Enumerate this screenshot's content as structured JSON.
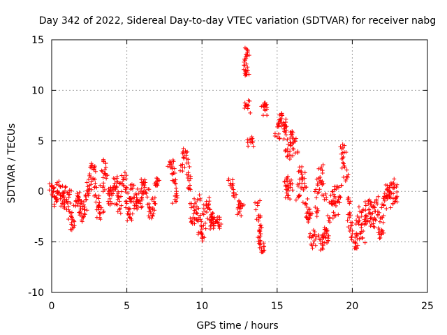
{
  "chart_data": {
    "type": "scatter",
    "title": "Day 342 of 2022, Sidereal Day-to-day VTEC variation (SDTVAR) for receiver nabg",
    "xlabel": "GPS time / hours",
    "ylabel": "SDTVAR / TECUs",
    "xlim": [
      0,
      25
    ],
    "ylim": [
      -10,
      15
    ],
    "x_ticks": [
      "0",
      "5",
      "10",
      "15",
      "20",
      "25"
    ],
    "y_ticks": [
      "-10",
      "-5",
      "0",
      "5",
      "10",
      "15"
    ],
    "grid": true,
    "marker": "+",
    "series": [
      {
        "name": "SDTVAR",
        "color": "#ff0000",
        "points": [
          [
            0.0,
            0.5
          ],
          [
            0.1,
            0.0
          ],
          [
            0.2,
            -0.5
          ],
          [
            0.3,
            -1.0
          ],
          [
            0.4,
            -0.2
          ],
          [
            0.5,
            0.6
          ],
          [
            0.6,
            -0.4
          ],
          [
            0.7,
            -1.2
          ],
          [
            0.8,
            -0.6
          ],
          [
            0.9,
            0.4
          ],
          [
            1.0,
            -0.8
          ],
          [
            1.1,
            -1.5
          ],
          [
            1.2,
            -0.3
          ],
          [
            1.3,
            -2.5
          ],
          [
            1.4,
            -3.4
          ],
          [
            1.5,
            -3.0
          ],
          [
            1.6,
            -1.0
          ],
          [
            1.7,
            -0.2
          ],
          [
            1.8,
            -0.9
          ],
          [
            1.9,
            -1.5
          ],
          [
            2.0,
            -2.2
          ],
          [
            2.1,
            -2.6
          ],
          [
            2.2,
            -1.8
          ],
          [
            2.3,
            -0.8
          ],
          [
            2.4,
            -0.2
          ],
          [
            2.5,
            0.6
          ],
          [
            2.6,
            1.4
          ],
          [
            2.7,
            2.6
          ],
          [
            2.8,
            2.2
          ],
          [
            2.9,
            0.8
          ],
          [
            3.0,
            -0.6
          ],
          [
            3.1,
            -1.8
          ],
          [
            3.2,
            -2.6
          ],
          [
            3.3,
            -1.6
          ],
          [
            3.4,
            0.4
          ],
          [
            3.5,
            1.8
          ],
          [
            3.6,
            2.8
          ],
          [
            3.7,
            1.6
          ],
          [
            3.8,
            0.0
          ],
          [
            3.9,
            -1.0
          ],
          [
            4.0,
            -0.4
          ],
          [
            4.1,
            0.4
          ],
          [
            4.2,
            1.2
          ],
          [
            4.3,
            0.5
          ],
          [
            4.4,
            -0.8
          ],
          [
            4.5,
            -1.8
          ],
          [
            4.6,
            -0.5
          ],
          [
            4.7,
            0.8
          ],
          [
            4.8,
            1.4
          ],
          [
            4.9,
            0.2
          ],
          [
            5.0,
            -1.2
          ],
          [
            5.1,
            -2.0
          ],
          [
            5.2,
            -2.6
          ],
          [
            5.3,
            -1.0
          ],
          [
            5.4,
            0.3
          ],
          [
            5.5,
            -0.6
          ],
          [
            5.6,
            -1.4
          ],
          [
            5.7,
            -0.8
          ],
          [
            5.8,
            -0.2
          ],
          [
            5.9,
            -1.2
          ],
          [
            6.0,
            -0.6
          ],
          [
            6.1,
            1.0
          ],
          [
            6.2,
            0.4
          ],
          [
            6.3,
            -0.2
          ],
          [
            6.5,
            -1.6
          ],
          [
            6.6,
            -2.2
          ],
          [
            6.7,
            -1.8
          ],
          [
            6.8,
            -1.0
          ],
          [
            6.9,
            0.6
          ],
          [
            7.0,
            1.0
          ],
          [
            7.9,
            2.8
          ],
          [
            8.0,
            2.5
          ],
          [
            8.1,
            1.8
          ],
          [
            8.2,
            0.8
          ],
          [
            8.3,
            0.0
          ],
          [
            8.2,
            -0.8
          ],
          [
            8.7,
            2.4
          ],
          [
            8.8,
            3.4
          ],
          [
            8.9,
            4.0
          ],
          [
            9.0,
            2.8
          ],
          [
            9.1,
            1.6
          ],
          [
            9.2,
            0.6
          ],
          [
            9.3,
            -1.2
          ],
          [
            9.4,
            -2.6
          ],
          [
            9.5,
            -3.2
          ],
          [
            9.6,
            -1.8
          ],
          [
            9.7,
            -0.8
          ],
          [
            9.8,
            -2.6
          ],
          [
            9.9,
            -4.0
          ],
          [
            10.0,
            -4.6
          ],
          [
            10.1,
            -3.4
          ],
          [
            10.2,
            -2.0
          ],
          [
            10.3,
            -1.0
          ],
          [
            10.4,
            -1.6
          ],
          [
            10.5,
            -2.8
          ],
          [
            10.6,
            -3.4
          ],
          [
            10.7,
            -2.6
          ],
          [
            10.8,
            -3.2
          ],
          [
            10.9,
            -3.0
          ],
          [
            11.0,
            -2.8
          ],
          [
            11.1,
            -3.4
          ],
          [
            11.9,
            0.8
          ],
          [
            12.0,
            0.3
          ],
          [
            12.1,
            -0.2
          ],
          [
            12.4,
            -1.6
          ],
          [
            12.5,
            -2.0
          ],
          [
            12.6,
            -1.2
          ],
          [
            12.9,
            12.0
          ],
          [
            12.95,
            12.6
          ],
          [
            13.0,
            13.4
          ],
          [
            13.05,
            13.9
          ],
          [
            12.95,
            11.6
          ],
          [
            13.0,
            8.6
          ],
          [
            13.05,
            8.2
          ],
          [
            13.2,
            5.1
          ],
          [
            13.25,
            4.8
          ],
          [
            13.7,
            -1.4
          ],
          [
            13.8,
            -2.6
          ],
          [
            13.85,
            -3.4
          ],
          [
            13.9,
            -5.0
          ],
          [
            13.95,
            -5.6
          ],
          [
            14.0,
            -6.0
          ],
          [
            13.9,
            -4.2
          ],
          [
            14.1,
            8.4
          ],
          [
            14.2,
            8.0
          ],
          [
            14.3,
            8.6
          ],
          [
            15.0,
            5.4
          ],
          [
            15.1,
            6.4
          ],
          [
            15.2,
            7.0
          ],
          [
            15.3,
            7.5
          ],
          [
            15.4,
            6.8
          ],
          [
            15.5,
            6.2
          ],
          [
            15.6,
            5.6
          ],
          [
            15.7,
            4.2
          ],
          [
            15.8,
            3.6
          ],
          [
            15.9,
            4.8
          ],
          [
            16.0,
            5.6
          ],
          [
            16.1,
            4.8
          ],
          [
            16.2,
            3.8
          ],
          [
            15.5,
            1.0
          ],
          [
            15.6,
            0.2
          ],
          [
            15.7,
            -0.4
          ],
          [
            15.8,
            1.0
          ],
          [
            15.9,
            0.4
          ],
          [
            16.4,
            -0.6
          ],
          [
            16.5,
            0.8
          ],
          [
            16.6,
            2.0
          ],
          [
            16.7,
            1.4
          ],
          [
            16.8,
            0.4
          ],
          [
            16.9,
            -1.2
          ],
          [
            17.0,
            -2.6
          ],
          [
            17.1,
            -1.8
          ],
          [
            17.2,
            -2.4
          ],
          [
            17.3,
            -4.6
          ],
          [
            17.4,
            -5.2
          ],
          [
            17.5,
            -4.0
          ],
          [
            17.6,
            -2.0
          ],
          [
            17.7,
            -0.2
          ],
          [
            17.8,
            1.0
          ],
          [
            17.9,
            2.2
          ],
          [
            18.0,
            1.0
          ],
          [
            18.1,
            -0.4
          ],
          [
            17.9,
            -4.8
          ],
          [
            18.0,
            -5.6
          ],
          [
            18.1,
            -4.6
          ],
          [
            18.2,
            -3.8
          ],
          [
            18.3,
            -4.2
          ],
          [
            18.4,
            -4.9
          ],
          [
            18.5,
            -2.6
          ],
          [
            18.6,
            -1.0
          ],
          [
            18.7,
            0.0
          ],
          [
            18.8,
            -1.2
          ],
          [
            18.9,
            -2.4
          ],
          [
            19.0,
            -1.0
          ],
          [
            19.1,
            0.4
          ],
          [
            19.2,
            -0.6
          ],
          [
            19.3,
            4.2
          ],
          [
            19.4,
            3.4
          ],
          [
            19.5,
            2.4
          ],
          [
            19.6,
            1.2
          ],
          [
            19.7,
            -0.8
          ],
          [
            19.8,
            -2.6
          ],
          [
            19.9,
            -3.4
          ],
          [
            20.0,
            -4.2
          ],
          [
            20.1,
            -5.0
          ],
          [
            20.2,
            -5.6
          ],
          [
            20.3,
            -4.4
          ],
          [
            20.4,
            -3.0
          ],
          [
            20.5,
            -2.0
          ],
          [
            20.6,
            -3.6
          ],
          [
            20.7,
            -4.6
          ],
          [
            20.8,
            -2.8
          ],
          [
            20.9,
            -1.4
          ],
          [
            21.0,
            -3.0
          ],
          [
            21.1,
            -2.2
          ],
          [
            21.2,
            -1.0
          ],
          [
            21.3,
            -2.6
          ],
          [
            21.4,
            -3.2
          ],
          [
            21.5,
            -1.6
          ],
          [
            21.6,
            -0.8
          ],
          [
            21.7,
            -2.4
          ],
          [
            21.8,
            -3.8
          ],
          [
            21.9,
            -4.2
          ],
          [
            22.0,
            -2.6
          ],
          [
            22.1,
            -1.4
          ],
          [
            22.2,
            -0.6
          ],
          [
            22.3,
            0.2
          ],
          [
            22.4,
            -0.4
          ],
          [
            22.5,
            0.4
          ],
          [
            22.6,
            -0.2
          ],
          [
            22.7,
            0.8
          ],
          [
            22.8,
            0.4
          ],
          [
            22.9,
            -0.6
          ],
          [
            22.7,
            -1.2
          ]
        ]
      }
    ]
  }
}
